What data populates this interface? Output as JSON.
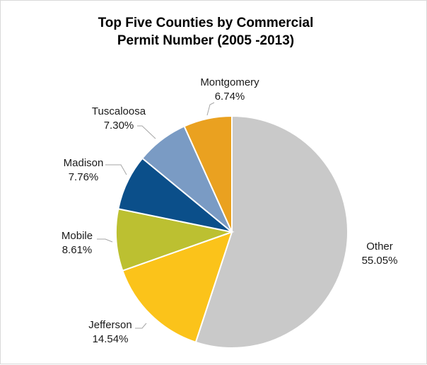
{
  "chart_data": {
    "type": "pie",
    "title_lines": [
      "Top Five Counties by Commercial",
      "Permit Number (2005 -2013)"
    ],
    "slices": [
      {
        "name": "Other",
        "value": 55.05,
        "label": "55.05%",
        "color": "#c9c9c9"
      },
      {
        "name": "Jefferson",
        "value": 14.54,
        "label": "14.54%",
        "color": "#fbc31a"
      },
      {
        "name": "Mobile",
        "value": 8.61,
        "label": "8.61%",
        "color": "#bcc031"
      },
      {
        "name": "Madison",
        "value": 7.76,
        "label": "7.76%",
        "color": "#0b4f8a"
      },
      {
        "name": "Tuscaloosa",
        "value": 7.3,
        "label": "7.30%",
        "color": "#7a9bc4"
      },
      {
        "name": "Montgomery",
        "value": 6.74,
        "label": "6.74%",
        "color": "#eaa120"
      }
    ],
    "start_angle_deg": 0,
    "direction": "clockwise",
    "legend": "none",
    "labels": "outside with leader lines"
  }
}
